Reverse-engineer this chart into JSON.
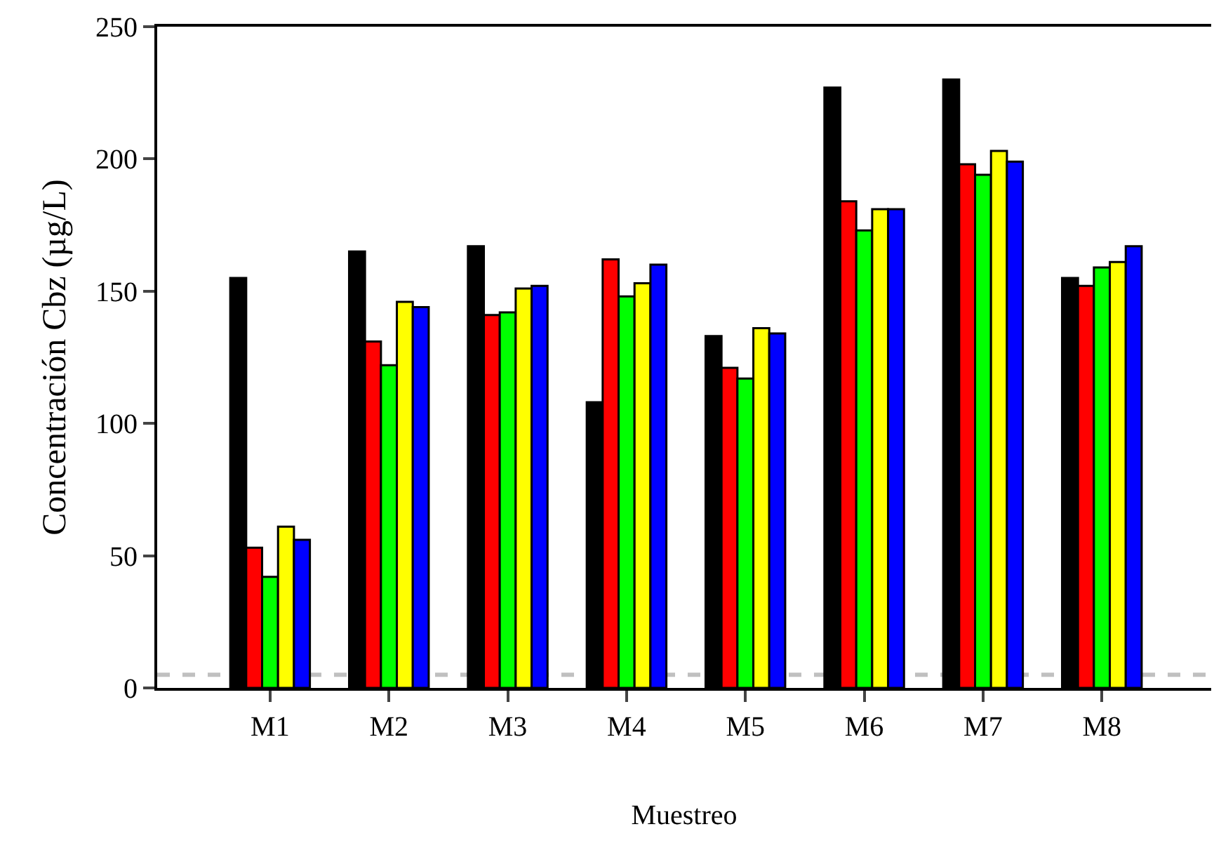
{
  "chart_data": {
    "type": "bar",
    "xlabel": "Muestreo",
    "ylabel": "Concentración Cbz (µg/L)",
    "categories": [
      "M1",
      "M2",
      "M3",
      "M4",
      "M5",
      "M6",
      "M7",
      "M8"
    ],
    "series": [
      {
        "color": "#000000",
        "values": [
          155,
          165,
          167,
          108,
          133,
          227,
          230,
          155
        ]
      },
      {
        "color": "#ff0000",
        "values": [
          53,
          131,
          141,
          162,
          121,
          184,
          198,
          152
        ]
      },
      {
        "color": "#00ff00",
        "values": [
          42,
          122,
          142,
          148,
          117,
          173,
          194,
          159
        ]
      },
      {
        "color": "#ffff00",
        "values": [
          61,
          146,
          151,
          153,
          136,
          181,
          203,
          161
        ]
      },
      {
        "color": "#0000ff",
        "values": [
          56,
          144,
          152,
          160,
          134,
          181,
          199,
          167
        ]
      }
    ],
    "ylim": [
      0,
      250
    ],
    "yticks": [
      0,
      50,
      100,
      150,
      200,
      250
    ],
    "grid": false,
    "ref_lines": [
      {
        "axis": "y",
        "value": 5,
        "color": "#c0c0c0",
        "line_style": "dashed"
      }
    ]
  }
}
